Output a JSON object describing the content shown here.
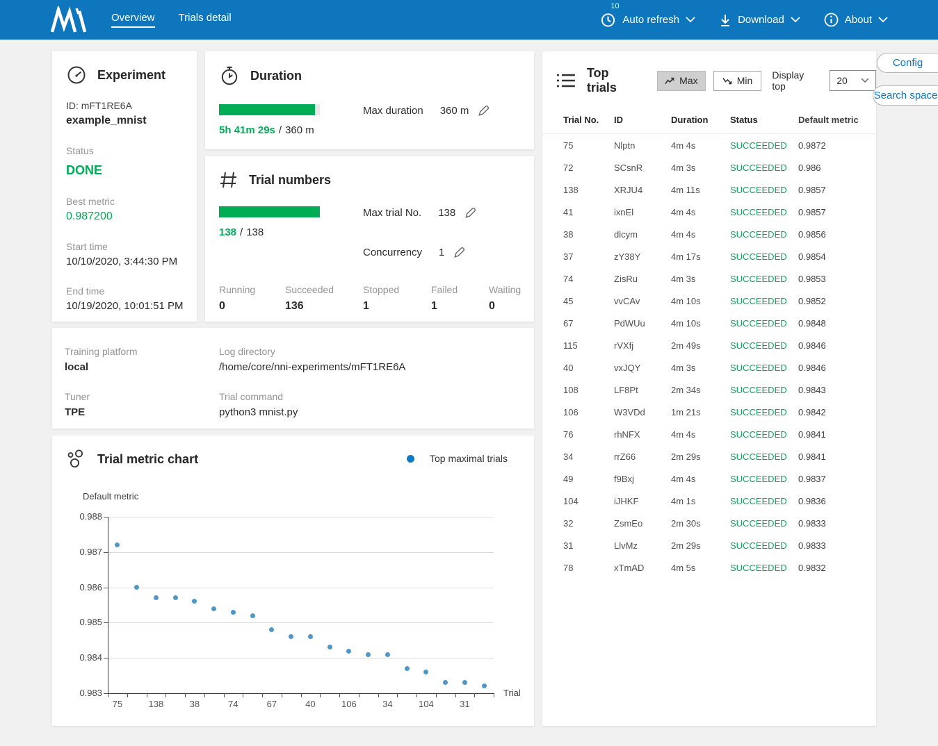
{
  "nav": {
    "brand": "NNI",
    "tabs": [
      {
        "label": "Overview"
      },
      {
        "label": "Trials detail"
      }
    ],
    "auto_refresh": {
      "label": "Auto refresh",
      "interval_badge": "10"
    },
    "download": {
      "label": "Download"
    },
    "about": {
      "label": "About"
    }
  },
  "experiment": {
    "title": "Experiment",
    "id_line": "ID: mFT1RE6A",
    "name": "example_mnist",
    "status_label": "Status",
    "status": "DONE",
    "best_metric_label": "Best metric",
    "best_metric": "0.987200",
    "start_time_label": "Start time",
    "start_time": "10/10/2020, 3:44:30 PM",
    "end_time_label": "End time",
    "end_time": "10/19/2020, 10:01:51 PM"
  },
  "duration": {
    "title": "Duration",
    "elapsed": "5h 41m 29s",
    "separator": "/",
    "total": "360 m",
    "max_duration_label": "Max duration",
    "max_duration_value": "360 m",
    "progress_percent": 94.9
  },
  "trial_numbers": {
    "title": "Trial numbers",
    "current": "138",
    "separator": "/",
    "total": "138",
    "max_trial_label": "Max trial No.",
    "max_trial_value": "138",
    "concurrency_label": "Concurrency",
    "concurrency_value": "1",
    "progress_percent": 100,
    "stats": [
      {
        "label": "Running",
        "value": "0"
      },
      {
        "label": "Succeeded",
        "value": "136"
      },
      {
        "label": "Stopped",
        "value": "1"
      },
      {
        "label": "Failed",
        "value": "1"
      },
      {
        "label": "Waiting",
        "value": "0"
      }
    ]
  },
  "platform": {
    "training_platform_label": "Training platform",
    "training_platform": "local",
    "tuner_label": "Tuner",
    "tuner": "TPE",
    "log_directory_label": "Log directory",
    "log_directory": "/home/core/nni-experiments/mFT1RE6A",
    "trial_command_label": "Trial command",
    "trial_command": "python3 mnist.py"
  },
  "metric_chart": {
    "title": "Trial metric chart",
    "legend_label": "Top maximal trials"
  },
  "chart_data": {
    "type": "scatter",
    "title": "Trial metric chart",
    "xlabel": "Trial",
    "ylabel": "Default metric",
    "ylim": [
      0.983,
      0.988
    ],
    "y_ticks": [
      0.983,
      0.984,
      0.985,
      0.986,
      0.987,
      0.988
    ],
    "x": [
      75,
      72,
      138,
      41,
      38,
      37,
      74,
      45,
      67,
      115,
      40,
      108,
      106,
      76,
      34,
      49,
      104,
      32,
      31,
      78
    ],
    "y": [
      0.9872,
      0.986,
      0.9857,
      0.9857,
      0.9856,
      0.9854,
      0.9853,
      0.9852,
      0.9848,
      0.9846,
      0.9846,
      0.9843,
      0.9842,
      0.9841,
      0.9841,
      0.9837,
      0.9836,
      0.9833,
      0.9833,
      0.9832
    ],
    "x_tick_labels_shown": [
      "75",
      "138",
      "38",
      "74",
      "67",
      "40",
      "106",
      "34",
      "104",
      "31"
    ],
    "grid": true,
    "legend": [
      "Top maximal trials"
    ],
    "legend_position": "top-right"
  },
  "top_trials": {
    "title": "Top trials",
    "max_button": "Max",
    "min_button": "Min",
    "display_top_label": "Display top",
    "display_top_value": "20",
    "config_button": "Config",
    "search_space_button": "Search space",
    "columns": [
      "Trial No.",
      "ID",
      "Duration",
      "Status",
      "Default metric"
    ],
    "rows": [
      {
        "no": "75",
        "id": "Nlptn",
        "duration": "4m 4s",
        "status": "SUCCEEDED",
        "metric": "0.9872"
      },
      {
        "no": "72",
        "id": "SCsnR",
        "duration": "4m 3s",
        "status": "SUCCEEDED",
        "metric": "0.986"
      },
      {
        "no": "138",
        "id": "XRJU4",
        "duration": "4m 11s",
        "status": "SUCCEEDED",
        "metric": "0.9857"
      },
      {
        "no": "41",
        "id": "ixnEl",
        "duration": "4m 4s",
        "status": "SUCCEEDED",
        "metric": "0.9857"
      },
      {
        "no": "38",
        "id": "dlcym",
        "duration": "4m 4s",
        "status": "SUCCEEDED",
        "metric": "0.9856"
      },
      {
        "no": "37",
        "id": "zY38Y",
        "duration": "4m 17s",
        "status": "SUCCEEDED",
        "metric": "0.9854"
      },
      {
        "no": "74",
        "id": "ZisRu",
        "duration": "4m 3s",
        "status": "SUCCEEDED",
        "metric": "0.9853"
      },
      {
        "no": "45",
        "id": "vvCAv",
        "duration": "4m 10s",
        "status": "SUCCEEDED",
        "metric": "0.9852"
      },
      {
        "no": "67",
        "id": "PdWUu",
        "duration": "4m 10s",
        "status": "SUCCEEDED",
        "metric": "0.9848"
      },
      {
        "no": "115",
        "id": "rVXfj",
        "duration": "2m 49s",
        "status": "SUCCEEDED",
        "metric": "0.9846"
      },
      {
        "no": "40",
        "id": "vxJQY",
        "duration": "4m 3s",
        "status": "SUCCEEDED",
        "metric": "0.9846"
      },
      {
        "no": "108",
        "id": "LF8Pt",
        "duration": "2m 34s",
        "status": "SUCCEEDED",
        "metric": "0.9843"
      },
      {
        "no": "106",
        "id": "W3VDd",
        "duration": "1m 21s",
        "status": "SUCCEEDED",
        "metric": "0.9842"
      },
      {
        "no": "76",
        "id": "rhNFX",
        "duration": "4m 4s",
        "status": "SUCCEEDED",
        "metric": "0.9841"
      },
      {
        "no": "34",
        "id": "rrZ66",
        "duration": "2m 29s",
        "status": "SUCCEEDED",
        "metric": "0.9841"
      },
      {
        "no": "49",
        "id": "f9Bxj",
        "duration": "4m 4s",
        "status": "SUCCEEDED",
        "metric": "0.9837"
      },
      {
        "no": "104",
        "id": "iJHKF",
        "duration": "4m 1s",
        "status": "SUCCEEDED",
        "metric": "0.9836"
      },
      {
        "no": "32",
        "id": "ZsmEo",
        "duration": "2m 30s",
        "status": "SUCCEEDED",
        "metric": "0.9833"
      },
      {
        "no": "31",
        "id": "LlvMz",
        "duration": "2m 29s",
        "status": "SUCCEEDED",
        "metric": "0.9833"
      },
      {
        "no": "78",
        "id": "xTmAD",
        "duration": "4m 5s",
        "status": "SUCCEEDED",
        "metric": "0.9832"
      }
    ]
  },
  "colors": {
    "header_blue": "#0d76bd",
    "green": "#00ad56",
    "link_blue": "#0078d4",
    "point_blue": "#4f97c9",
    "legend_blue": "#0c7ac9",
    "grey_label": "#949494"
  }
}
